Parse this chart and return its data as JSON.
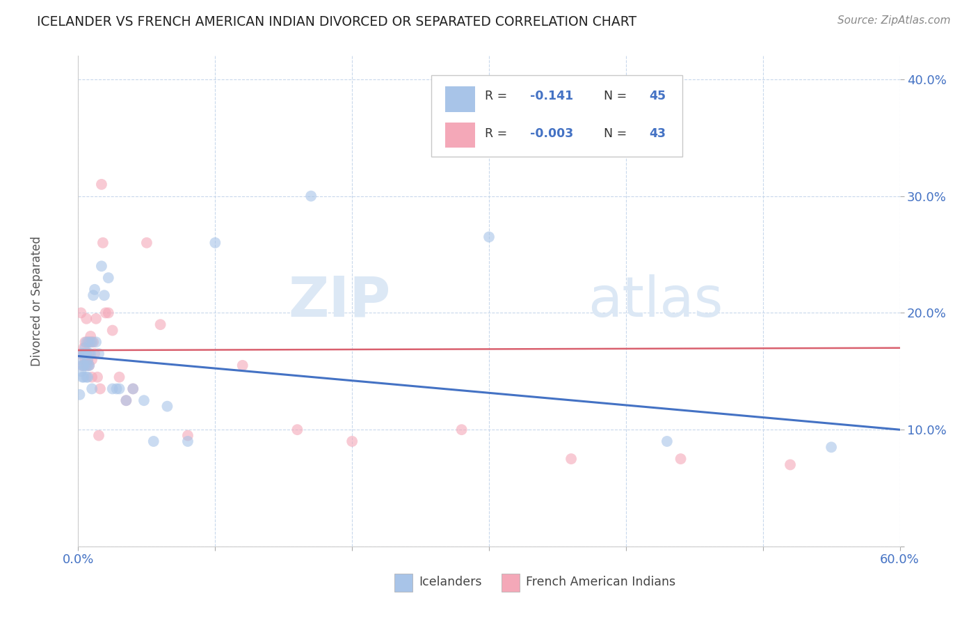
{
  "title": "ICELANDER VS FRENCH AMERICAN INDIAN DIVORCED OR SEPARATED CORRELATION CHART",
  "source": "Source: ZipAtlas.com",
  "ylabel": "Divorced or Separated",
  "blue_color": "#a8c4e8",
  "pink_color": "#f4a8b8",
  "trend_blue_color": "#4472c4",
  "trend_pink_color": "#d9606e",
  "legend_blue_r": "-0.141",
  "legend_blue_n": "45",
  "legend_pink_r": "-0.003",
  "legend_pink_n": "43",
  "blue_x": [
    0.001,
    0.002,
    0.002,
    0.003,
    0.003,
    0.003,
    0.004,
    0.004,
    0.004,
    0.005,
    0.005,
    0.005,
    0.006,
    0.006,
    0.006,
    0.007,
    0.007,
    0.007,
    0.008,
    0.008,
    0.008,
    0.009,
    0.01,
    0.01,
    0.011,
    0.012,
    0.013,
    0.015,
    0.017,
    0.019,
    0.022,
    0.025,
    0.028,
    0.03,
    0.035,
    0.04,
    0.048,
    0.055,
    0.065,
    0.08,
    0.1,
    0.17,
    0.3,
    0.43,
    0.55
  ],
  "blue_y": [
    0.13,
    0.15,
    0.16,
    0.155,
    0.165,
    0.145,
    0.155,
    0.165,
    0.145,
    0.165,
    0.155,
    0.17,
    0.175,
    0.145,
    0.165,
    0.16,
    0.145,
    0.155,
    0.165,
    0.175,
    0.155,
    0.165,
    0.175,
    0.135,
    0.215,
    0.22,
    0.175,
    0.165,
    0.24,
    0.215,
    0.23,
    0.135,
    0.135,
    0.135,
    0.125,
    0.135,
    0.125,
    0.09,
    0.12,
    0.09,
    0.26,
    0.3,
    0.265,
    0.09,
    0.085
  ],
  "pink_x": [
    0.001,
    0.002,
    0.003,
    0.003,
    0.004,
    0.004,
    0.005,
    0.005,
    0.006,
    0.006,
    0.006,
    0.007,
    0.007,
    0.008,
    0.008,
    0.009,
    0.009,
    0.01,
    0.01,
    0.011,
    0.012,
    0.013,
    0.014,
    0.015,
    0.016,
    0.017,
    0.018,
    0.02,
    0.022,
    0.025,
    0.03,
    0.035,
    0.04,
    0.05,
    0.06,
    0.08,
    0.12,
    0.16,
    0.2,
    0.28,
    0.36,
    0.44,
    0.52
  ],
  "pink_y": [
    0.165,
    0.2,
    0.155,
    0.165,
    0.17,
    0.165,
    0.16,
    0.175,
    0.155,
    0.165,
    0.195,
    0.16,
    0.175,
    0.165,
    0.155,
    0.18,
    0.175,
    0.16,
    0.145,
    0.175,
    0.165,
    0.195,
    0.145,
    0.095,
    0.135,
    0.31,
    0.26,
    0.2,
    0.2,
    0.185,
    0.145,
    0.125,
    0.135,
    0.26,
    0.19,
    0.095,
    0.155,
    0.1,
    0.09,
    0.1,
    0.075,
    0.075,
    0.07
  ],
  "trend_blue_x0": 0.0,
  "trend_blue_y0": 0.163,
  "trend_blue_x1": 0.6,
  "trend_blue_y1": 0.1,
  "trend_pink_x0": 0.0,
  "trend_pink_y0": 0.168,
  "trend_pink_x1": 0.6,
  "trend_pink_y1": 0.17,
  "xlim": [
    0.0,
    0.6
  ],
  "ylim": [
    0.0,
    0.42
  ],
  "yticks": [
    0.0,
    0.1,
    0.2,
    0.3,
    0.4
  ],
  "ytick_labels": [
    "",
    "10.0%",
    "20.0%",
    "30.0%",
    "40.0%"
  ],
  "xtick_labels": [
    "0.0%",
    "",
    "",
    "",
    "",
    "",
    "60.0%"
  ],
  "dot_size": 130,
  "dot_alpha": 0.6
}
